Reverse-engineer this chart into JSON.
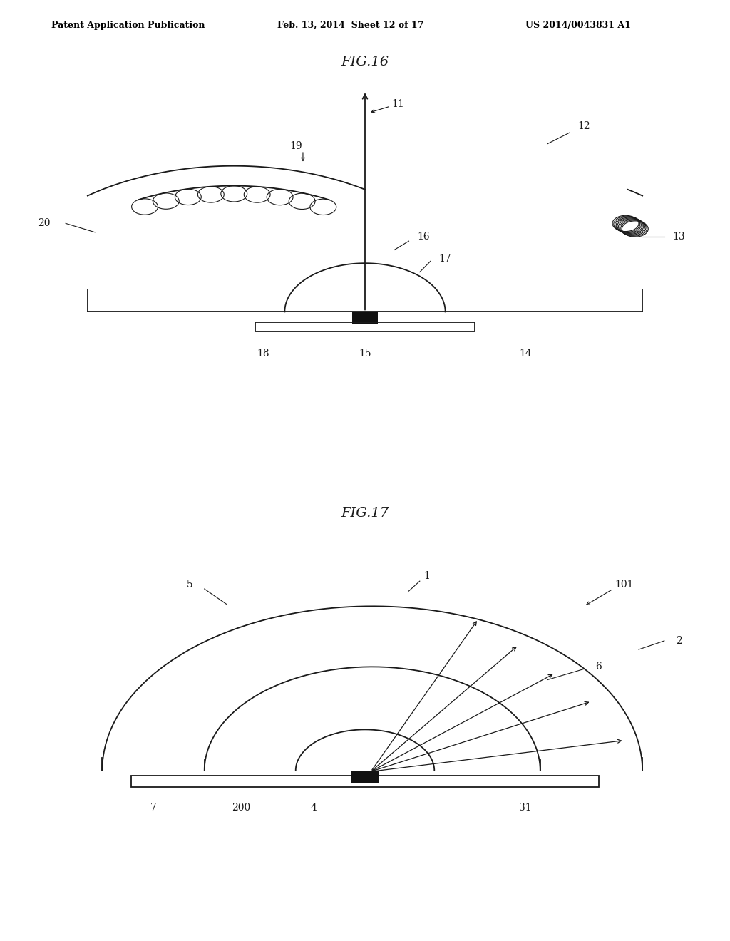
{
  "bg_color": "#ffffff",
  "line_color": "#1a1a1a",
  "fig16_title": "FIG.16",
  "fig17_title": "FIG.17",
  "header_left": "Patent Application Publication",
  "header_mid": "Feb. 13, 2014  Sheet 12 of 17",
  "header_right": "US 2014/0043831 A1"
}
